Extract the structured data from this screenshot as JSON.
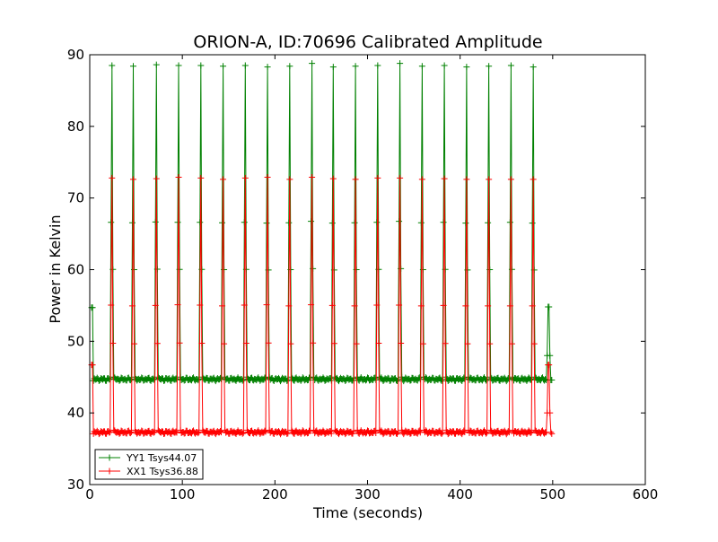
{
  "chart_data": {
    "type": "line",
    "title": "ORION-A, ID:70696 Calibrated Amplitude",
    "xlabel": "Time (seconds)",
    "ylabel": "Power in Kelvin",
    "xlim": [
      0,
      600
    ],
    "ylim": [
      30,
      90
    ],
    "xticks": [
      0,
      100,
      200,
      300,
      400,
      500,
      600
    ],
    "yticks": [
      30,
      40,
      50,
      60,
      70,
      80,
      90
    ],
    "grid": false,
    "legend_position": "lower-left",
    "marker": "plus",
    "peak_times": [
      24,
      47,
      72,
      96,
      120,
      144,
      168,
      192,
      216,
      240,
      263,
      287,
      311,
      335,
      359,
      383,
      407,
      431,
      455,
      479
    ],
    "series": [
      {
        "name": "YY1 Tsys44.07",
        "color": "#008000",
        "baseline": 44.7,
        "peak_values": [
          88.5,
          88.4,
          88.6,
          88.5,
          88.5,
          88.4,
          88.5,
          88.3,
          88.4,
          88.8,
          88.3,
          88.4,
          88.5,
          88.8,
          88.4,
          88.5,
          88.3,
          88.4,
          88.5,
          88.3
        ],
        "start": {
          "x": [
            2,
            3,
            4
          ],
          "y": [
            54.7,
            54.7,
            44.5
          ]
        },
        "end": {
          "x": [
            493,
            494,
            495,
            496,
            497,
            498,
            499
          ],
          "y": [
            44.6,
            48.0,
            54.8,
            54.8,
            48.0,
            44.6,
            44.6
          ]
        }
      },
      {
        "name": "XX1 Tsys36.88",
        "color": "#ff0000",
        "baseline": 37.3,
        "peak_values": [
          72.8,
          72.6,
          72.7,
          72.9,
          72.8,
          72.6,
          72.8,
          72.9,
          72.6,
          72.9,
          72.7,
          72.6,
          72.8,
          72.8,
          72.6,
          72.7,
          72.6,
          72.6,
          72.6,
          72.6
        ],
        "start": {
          "x": [
            2,
            3,
            4
          ],
          "y": [
            46.7,
            46.7,
            37.1
          ]
        },
        "end": {
          "x": [
            493,
            494,
            495,
            496,
            497,
            498,
            499
          ],
          "y": [
            37.3,
            40.0,
            46.7,
            46.7,
            40.0,
            37.3,
            37.1
          ]
        }
      }
    ]
  }
}
